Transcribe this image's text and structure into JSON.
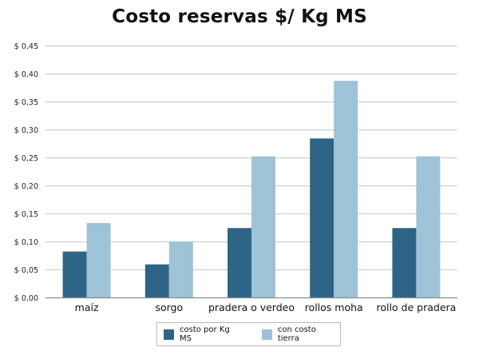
{
  "chart_data": {
    "type": "bar",
    "title": "Costo reservas $/ Kg MS",
    "xlabel": "",
    "ylabel": "",
    "categories": [
      "maíz",
      "sorgo",
      "pradera o verdeo",
      "rollos moha",
      "rollo de pradera"
    ],
    "series": [
      {
        "name": "costo por Kg MS",
        "color": "#2e6586",
        "values": [
          0.082,
          0.059,
          0.124,
          0.284,
          0.124
        ]
      },
      {
        "name": "con costo tierra",
        "color": "#9ec2d6",
        "values": [
          0.133,
          0.1,
          0.252,
          0.387,
          0.252
        ]
      }
    ],
    "ylim": [
      0,
      0.45
    ],
    "yticks": [
      0,
      0.05,
      0.1,
      0.15,
      0.2,
      0.25,
      0.3,
      0.35,
      0.4,
      0.45
    ],
    "ytick_labels": [
      "$ 0,00",
      "$ 0,05",
      "$ 0,10",
      "$ 0,15",
      "$ 0,20",
      "$ 0,25",
      "$ 0,30",
      "$ 0,35",
      "$ 0,40",
      "$ 0,45"
    ],
    "grid": true,
    "legend_position": "bottom",
    "colors": {
      "grid": "#c8c8c8",
      "axis": "#8c8c8c",
      "text": "#111111"
    }
  }
}
